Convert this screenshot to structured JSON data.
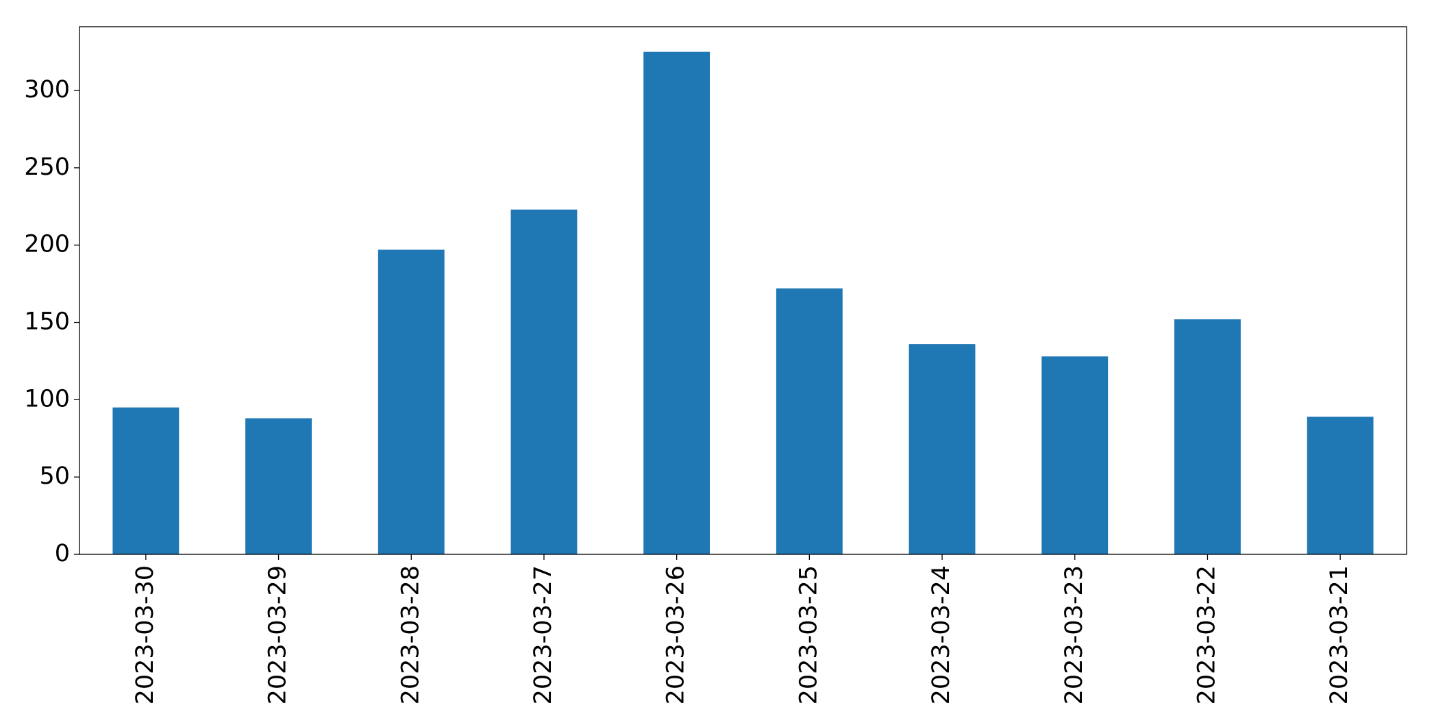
{
  "chart_data": {
    "type": "bar",
    "categories": [
      "2023-03-30",
      "2023-03-29",
      "2023-03-28",
      "2023-03-27",
      "2023-03-26",
      "2023-03-25",
      "2023-03-24",
      "2023-03-23",
      "2023-03-22",
      "2023-03-21"
    ],
    "values": [
      95,
      88,
      197,
      223,
      325,
      172,
      136,
      128,
      152,
      89
    ],
    "color": "#1f77b4",
    "ylim": [
      0,
      341.25
    ],
    "yticks": [
      0,
      50,
      100,
      150,
      200,
      250,
      300
    ],
    "grid": false
  }
}
